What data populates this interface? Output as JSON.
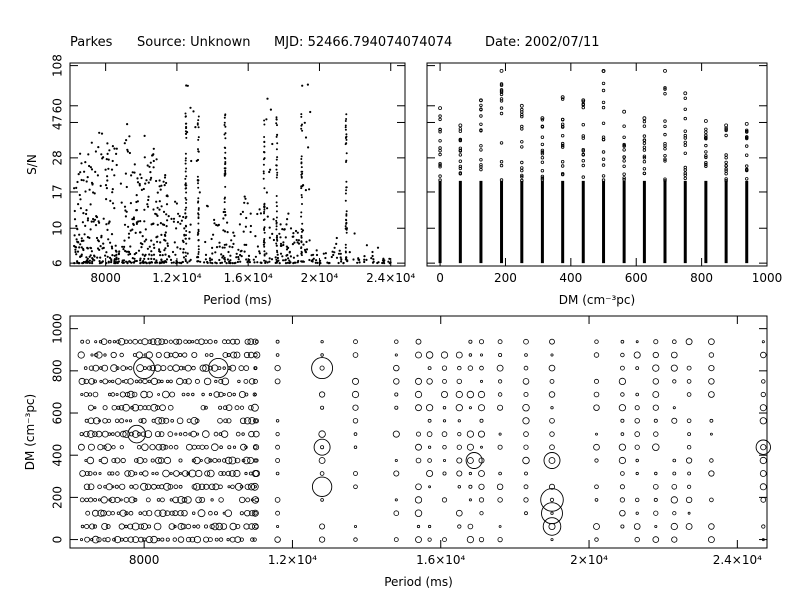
{
  "header": {
    "telescope": "Parkes",
    "source": "Source: Unknown",
    "mjd": "MJD: 52466.794074074074",
    "date": "Date: 2002/07/11"
  },
  "chart_data": [
    {
      "id": "snr_vs_period",
      "type": "scatter",
      "xlabel": "Period (ms)",
      "ylabel": "S/N",
      "xlim": [
        6000,
        24800
      ],
      "ylim_log10": [
        0.76,
        2.05
      ],
      "log_y": true,
      "x_ticks": [
        {
          "v": 8000,
          "t": "8000"
        },
        {
          "v": 12000,
          "t": "1.2×10⁴"
        },
        {
          "v": 16000,
          "t": "1.6×10⁴"
        },
        {
          "v": 20000,
          "t": "2×10⁴"
        },
        {
          "v": 24000,
          "t": "2.4×10⁴"
        }
      ],
      "y_ticks": [
        {
          "v": 6,
          "t": "6"
        },
        {
          "v": 10,
          "t": "10"
        },
        {
          "v": 17,
          "t": "17"
        },
        {
          "v": 28,
          "t": "28"
        },
        {
          "v": 47,
          "t": "47"
        },
        {
          "v": 60,
          "t": "60"
        },
        {
          "v": 108,
          "t": "108"
        }
      ],
      "series": [
        {
          "x": [
            6500,
            7000,
            7500,
            8000,
            8500,
            9000,
            9500,
            10000,
            10500,
            11000,
            11500,
            12500,
            13000,
            13500,
            14000,
            14500,
            15000,
            15500,
            16000,
            16500,
            17000,
            17500,
            18000,
            18500,
            19000,
            19500,
            20000,
            20500,
            21000,
            21500,
            22000,
            22500,
            23000,
            23500,
            24000
          ],
          "y": [
            30,
            45,
            52,
            38,
            35,
            48,
            28,
            44,
            32,
            22,
            16,
            100,
            60,
            14,
            12,
            15,
            10,
            18,
            13,
            14,
            95,
            12,
            14,
            10,
            100,
            8,
            7,
            9,
            8,
            11,
            9,
            8,
            8,
            8,
            7
          ]
        }
      ]
    },
    {
      "id": "snr_vs_dm",
      "type": "scatter",
      "xlabel": "DM (cm⁻³pc)",
      "ylabel": "",
      "xlim": [
        -40,
        1000
      ],
      "ylim_log10": [
        0.76,
        2.05
      ],
      "log_y": true,
      "x_ticks": [
        {
          "v": 0,
          "t": "0"
        },
        {
          "v": 200,
          "t": "200"
        },
        {
          "v": 400,
          "t": "400"
        },
        {
          "v": 600,
          "t": "600"
        },
        {
          "v": 800,
          "t": "800"
        },
        {
          "v": 1000,
          "t": "1000"
        }
      ],
      "series": [
        {
          "x": [
            0,
            62,
            125,
            188,
            250,
            313,
            375,
            438,
            500,
            563,
            625,
            688,
            750,
            813,
            875,
            938
          ],
          "y": [
            58,
            45,
            65,
            100,
            60,
            50,
            68,
            65,
            100,
            55,
            50,
            100,
            72,
            48,
            45,
            46
          ]
        }
      ]
    },
    {
      "id": "dm_vs_period",
      "type": "scatter",
      "xlabel": "Period (ms)",
      "ylabel": "DM (cm⁻³pc)",
      "xlim": [
        6000,
        24800
      ],
      "ylim": [
        -40,
        1060
      ],
      "x_ticks": [
        {
          "v": 8000,
          "t": "8000"
        },
        {
          "v": 12000,
          "t": "1.2×10⁴"
        },
        {
          "v": 16000,
          "t": "1.6×10⁴"
        },
        {
          "v": 20000,
          "t": "2×10⁴"
        },
        {
          "v": 24000,
          "t": "2.4×10⁴"
        }
      ],
      "y_ticks": [
        {
          "v": 0,
          "t": "0"
        },
        {
          "v": 200,
          "t": "200"
        },
        {
          "v": 400,
          "t": "400"
        },
        {
          "v": 600,
          "t": "600"
        },
        {
          "v": 800,
          "t": "800"
        },
        {
          "v": 1000,
          "t": "1000"
        }
      ],
      "dm_rows": [
        0,
        62,
        125,
        188,
        250,
        313,
        375,
        438,
        500,
        563,
        625,
        688,
        750,
        813,
        875,
        938
      ],
      "period_columns": [
        6700,
        7000,
        7400,
        7800,
        8100,
        8500,
        9000,
        9400,
        9800,
        10200,
        10500,
        11000,
        11600,
        12800,
        13700,
        14800,
        15400,
        15700,
        16100,
        16500,
        16800,
        17100,
        17600,
        18300,
        19000,
        20200,
        20900,
        21300,
        21800,
        22300,
        22700,
        23300,
        24700
      ],
      "large_circles": [
        {
          "x": 12800,
          "y": 250,
          "snr": 40
        },
        {
          "x": 12800,
          "y": 438,
          "snr": 30
        },
        {
          "x": 12800,
          "y": 813,
          "snr": 45
        },
        {
          "x": 19000,
          "y": 188,
          "snr": 50
        },
        {
          "x": 19000,
          "y": 125,
          "snr": 45
        },
        {
          "x": 19000,
          "y": 62,
          "snr": 35
        },
        {
          "x": 19000,
          "y": 375,
          "snr": 30
        },
        {
          "x": 8000,
          "y": 813,
          "snr": 45
        },
        {
          "x": 10000,
          "y": 813,
          "snr": 40
        },
        {
          "x": 7800,
          "y": 500,
          "snr": 35
        },
        {
          "x": 24700,
          "y": 438,
          "snr": 25
        },
        {
          "x": 16900,
          "y": 375,
          "snr": 30
        }
      ]
    }
  ]
}
